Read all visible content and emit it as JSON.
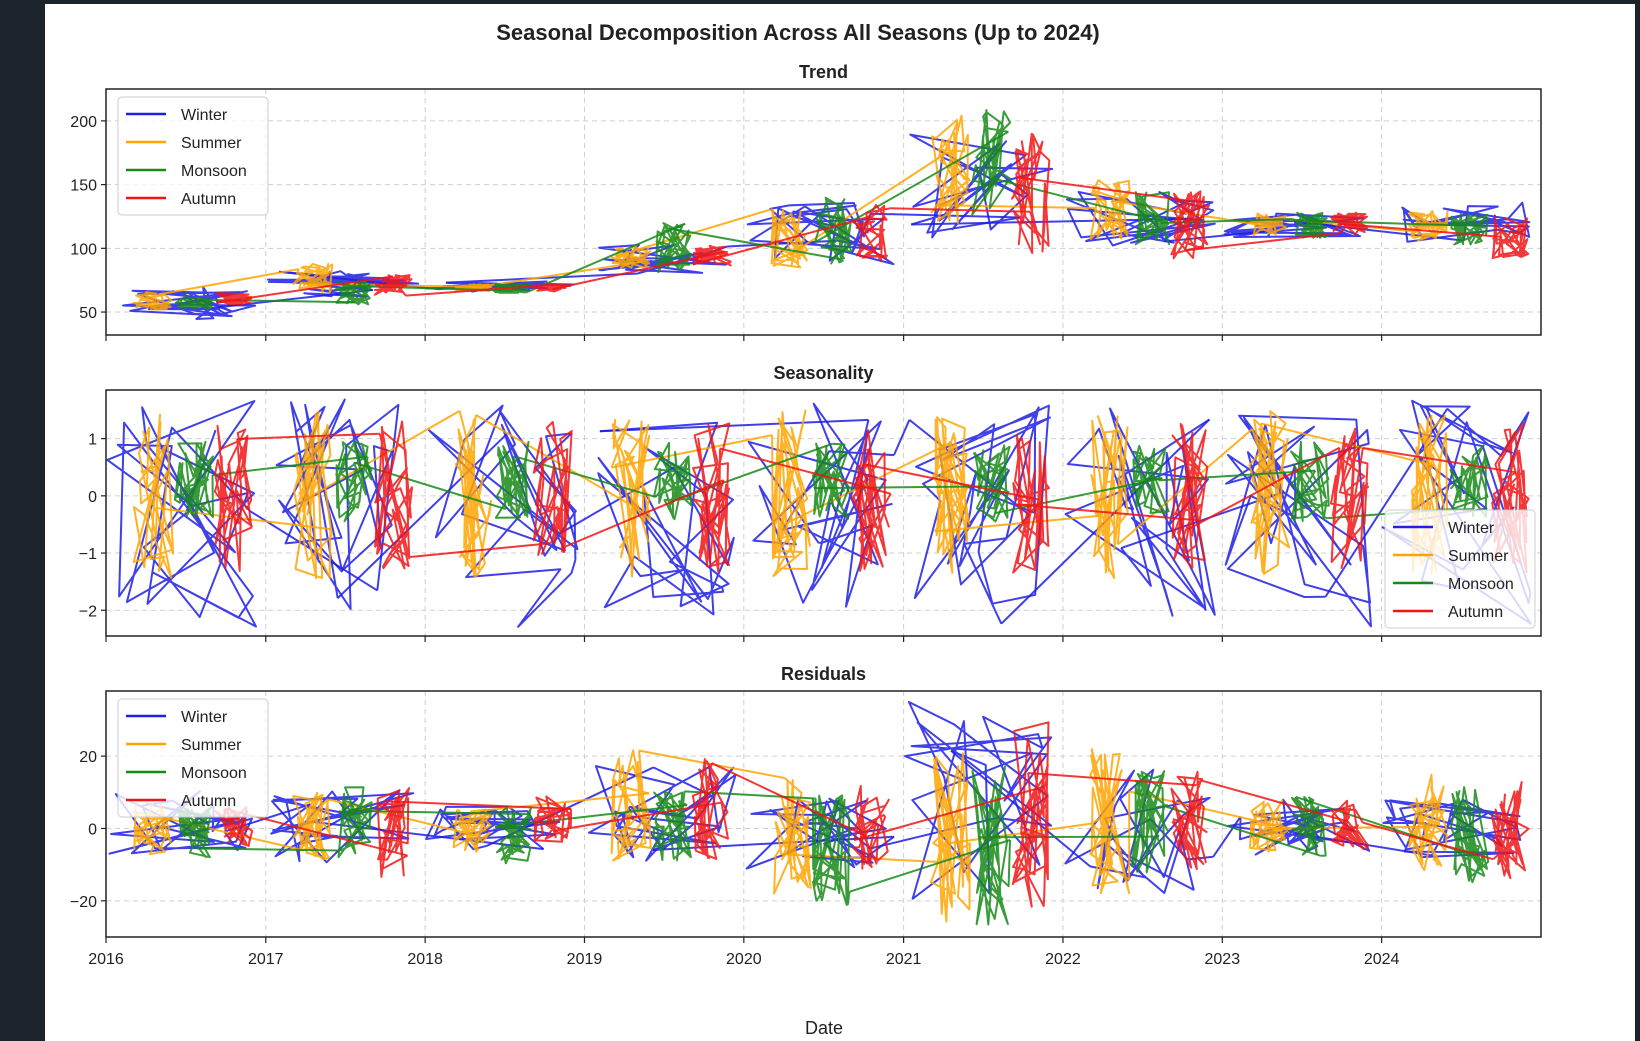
{
  "title": "Seasonal Decomposition Across All Seasons (Up to 2024)",
  "xlabel": "Date",
  "x_ticks": [
    "2016",
    "2017",
    "2018",
    "2019",
    "2020",
    "2021",
    "2022",
    "2023",
    "2024"
  ],
  "x_range": [
    "2016-01-01",
    "2024-12-31"
  ],
  "series_names": [
    "Winter",
    "Summer",
    "Monsoon",
    "Autumn"
  ],
  "colors": {
    "Winter": "#1f1fe6",
    "Summer": "#ffa500",
    "Monsoon": "#178a17",
    "Autumn": "#f01515"
  },
  "chart_data": [
    {
      "type": "line",
      "title": "Trend",
      "ylim": [
        32,
        225
      ],
      "y_ticks": [
        50,
        100,
        150,
        200
      ],
      "grid": true,
      "legend": "top-left",
      "series": [
        {
          "name": "Winter",
          "values_by_year": [
            {
              "year": 2016,
              "min": 42,
              "max": 70
            },
            {
              "year": 2017,
              "min": 62,
              "max": 83
            },
            {
              "year": 2018,
              "min": 66,
              "max": 74
            },
            {
              "year": 2019,
              "min": 80,
              "max": 103
            },
            {
              "year": 2020,
              "min": 86,
              "max": 136
            },
            {
              "year": 2021,
              "min": 105,
              "max": 190
            },
            {
              "year": 2022,
              "min": 102,
              "max": 145
            },
            {
              "year": 2023,
              "min": 108,
              "max": 128
            },
            {
              "year": 2024,
              "min": 105,
              "max": 137
            }
          ]
        },
        {
          "name": "Summer",
          "values_by_year": [
            {
              "year": 2016,
              "min": 52,
              "max": 66
            },
            {
              "year": 2017,
              "min": 65,
              "max": 88
            },
            {
              "year": 2018,
              "min": 66,
              "max": 72
            },
            {
              "year": 2019,
              "min": 84,
              "max": 103
            },
            {
              "year": 2020,
              "min": 85,
              "max": 135
            },
            {
              "year": 2021,
              "min": 118,
              "max": 208
            },
            {
              "year": 2022,
              "min": 105,
              "max": 155
            },
            {
              "year": 2023,
              "min": 110,
              "max": 128
            },
            {
              "year": 2024,
              "min": 106,
              "max": 130
            }
          ]
        },
        {
          "name": "Monsoon",
          "values_by_year": [
            {
              "year": 2016,
              "min": 52,
              "max": 62
            },
            {
              "year": 2017,
              "min": 56,
              "max": 75
            },
            {
              "year": 2018,
              "min": 65,
              "max": 73
            },
            {
              "year": 2019,
              "min": 80,
              "max": 120
            },
            {
              "year": 2020,
              "min": 88,
              "max": 145
            },
            {
              "year": 2021,
              "min": 125,
              "max": 216
            },
            {
              "year": 2022,
              "min": 103,
              "max": 150
            },
            {
              "year": 2023,
              "min": 108,
              "max": 128
            },
            {
              "year": 2024,
              "min": 103,
              "max": 128
            }
          ]
        },
        {
          "name": "Autumn",
          "values_by_year": [
            {
              "year": 2016,
              "min": 56,
              "max": 65
            },
            {
              "year": 2017,
              "min": 62,
              "max": 80
            },
            {
              "year": 2018,
              "min": 66,
              "max": 72
            },
            {
              "year": 2019,
              "min": 85,
              "max": 102
            },
            {
              "year": 2020,
              "min": 88,
              "max": 140
            },
            {
              "year": 2021,
              "min": 95,
              "max": 190
            },
            {
              "year": 2022,
              "min": 92,
              "max": 145
            },
            {
              "year": 2023,
              "min": 110,
              "max": 128
            },
            {
              "year": 2024,
              "min": 92,
              "max": 125
            }
          ]
        }
      ]
    },
    {
      "type": "line",
      "title": "Seasonality",
      "ylim": [
        -2.45,
        1.85
      ],
      "y_ticks": [
        -2,
        -1,
        0,
        1
      ],
      "grid": true,
      "legend": "bottom-right",
      "series": [
        {
          "name": "Winter",
          "values_by_year": [
            {
              "year": "all",
              "min": -2.3,
              "max": 1.7
            }
          ]
        },
        {
          "name": "Summer",
          "values_by_year": [
            {
              "year": "all",
              "min": -1.45,
              "max": 1.5
            }
          ]
        },
        {
          "name": "Monsoon",
          "values_by_year": [
            {
              "year": "all",
              "min": -0.45,
              "max": 0.95
            }
          ]
        },
        {
          "name": "Autumn",
          "values_by_year": [
            {
              "year": "all",
              "min": -1.35,
              "max": 1.3
            }
          ]
        }
      ]
    },
    {
      "type": "line",
      "title": "Residuals",
      "ylim": [
        -30,
        38
      ],
      "y_ticks": [
        -20,
        0,
        20
      ],
      "grid": true,
      "legend": "top-left",
      "series": [
        {
          "name": "Winter",
          "values_by_year": [
            {
              "year": 2016,
              "min": -7,
              "max": 12
            },
            {
              "year": 2017,
              "min": -11,
              "max": 12
            },
            {
              "year": 2018,
              "min": -6,
              "max": 6
            },
            {
              "year": 2019,
              "min": -9,
              "max": 18
            },
            {
              "year": 2020,
              "min": -12,
              "max": 9
            },
            {
              "year": 2021,
              "min": -21,
              "max": 35
            },
            {
              "year": 2022,
              "min": -18,
              "max": 18
            },
            {
              "year": 2023,
              "min": -8,
              "max": 8
            },
            {
              "year": 2024,
              "min": -8,
              "max": 8
            }
          ]
        },
        {
          "name": "Summer",
          "values_by_year": [
            {
              "year": 2016,
              "min": -8,
              "max": 8
            },
            {
              "year": 2017,
              "min": -9,
              "max": 10
            },
            {
              "year": 2018,
              "min": -7,
              "max": 6
            },
            {
              "year": 2019,
              "min": -9,
              "max": 22
            },
            {
              "year": 2020,
              "min": -18,
              "max": 14
            },
            {
              "year": 2021,
              "min": -26,
              "max": 22
            },
            {
              "year": 2022,
              "min": -20,
              "max": 22
            },
            {
              "year": 2023,
              "min": -7,
              "max": 8
            },
            {
              "year": 2024,
              "min": -12,
              "max": 15
            }
          ]
        },
        {
          "name": "Monsoon",
          "values_by_year": [
            {
              "year": 2016,
              "min": -9,
              "max": 6
            },
            {
              "year": 2017,
              "min": -8,
              "max": 12
            },
            {
              "year": 2018,
              "min": -10,
              "max": 6
            },
            {
              "year": 2019,
              "min": -9,
              "max": 12
            },
            {
              "year": 2020,
              "min": -22,
              "max": 10
            },
            {
              "year": 2021,
              "min": -27,
              "max": 19
            },
            {
              "year": 2022,
              "min": -14,
              "max": 16
            },
            {
              "year": 2023,
              "min": -8,
              "max": 9
            },
            {
              "year": 2024,
              "min": -15,
              "max": 12
            }
          ]
        },
        {
          "name": "Autumn",
          "values_by_year": [
            {
              "year": 2016,
              "min": -5,
              "max": 6
            },
            {
              "year": 2017,
              "min": -15,
              "max": 12
            },
            {
              "year": 2018,
              "min": -5,
              "max": 9
            },
            {
              "year": 2019,
              "min": -9,
              "max": 21
            },
            {
              "year": 2020,
              "min": -12,
              "max": 12
            },
            {
              "year": 2021,
              "min": -22,
              "max": 31
            },
            {
              "year": 2022,
              "min": -12,
              "max": 16
            },
            {
              "year": 2023,
              "min": -6,
              "max": 8
            },
            {
              "year": 2024,
              "min": -14,
              "max": 14
            }
          ]
        }
      ]
    }
  ]
}
